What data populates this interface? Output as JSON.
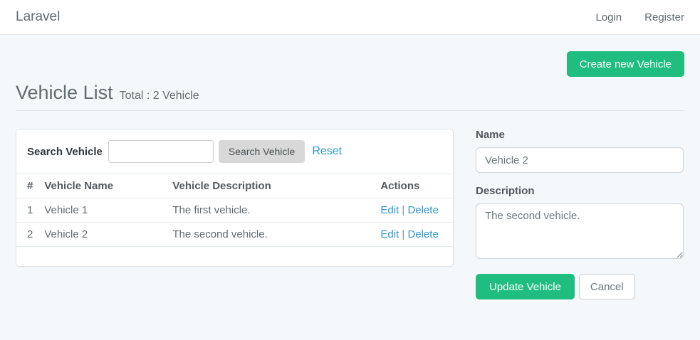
{
  "navbar": {
    "brand": "Laravel",
    "login_label": "Login",
    "register_label": "Register"
  },
  "header": {
    "create_button_label": "Create new Vehicle",
    "title": "Vehicle List",
    "subtitle": "Total : 2 Vehicle"
  },
  "search": {
    "label": "Search Vehicle",
    "input_value": "",
    "button_label": "Search Vehicle",
    "reset_label": "Reset"
  },
  "table": {
    "headers": {
      "num": "#",
      "name": "Vehicle Name",
      "description": "Vehicle Description",
      "actions": "Actions"
    },
    "rows": [
      {
        "num": "1",
        "name": "Vehicle 1",
        "description": "The first vehicle.",
        "edit": "Edit",
        "sep": "|",
        "delete": "Delete"
      },
      {
        "num": "2",
        "name": "Vehicle 2",
        "description": "The second vehicle.",
        "edit": "Edit",
        "sep": "|",
        "delete": "Delete"
      }
    ]
  },
  "form": {
    "name_label": "Name",
    "name_value": "Vehicle 2",
    "description_label": "Description",
    "description_value": "The second vehicle.",
    "update_button_label": "Update Vehicle",
    "cancel_button_label": "Cancel"
  },
  "colors": {
    "accent_green": "#1fbd7f",
    "link_blue": "#3097d1",
    "background": "#f5f8fa",
    "text_gray": "#636b6f"
  }
}
